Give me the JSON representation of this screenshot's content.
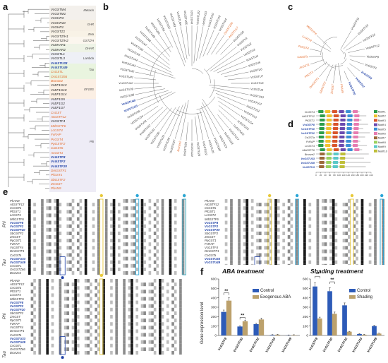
{
  "panel_labels": {
    "a": "a",
    "b": "b",
    "c": "c",
    "d": "d",
    "e": "e",
    "f": "f"
  },
  "colors": {
    "orange": "#e36a2a",
    "blue": "#1d3fa5",
    "control": "#2d5bb8",
    "treatment": "#bca16c",
    "conserved": "#1a1a1a",
    "semi": "#8a8a8a",
    "highlight_yellow": "#e8c93a",
    "highlight_blue": "#2aa6d8"
  },
  "panel_a": {
    "groups": [
      "Metaxin",
      "GHR",
      "Zeta",
      "GSTZ/H",
      "DHAR",
      "Lambda",
      "Tau",
      "EF1BG",
      "Phi"
    ],
    "leaves": [
      {
        "t": "VcGSTM4",
        "c": ""
      },
      {
        "t": "VcGSTM1",
        "c": ""
      },
      {
        "t": "VcGHR3",
        "c": ""
      },
      {
        "t": "VcGHR10",
        "c": ""
      },
      {
        "t": "VcGHR1",
        "c": ""
      },
      {
        "t": "VcGSTZ1",
        "c": ""
      },
      {
        "t": "VcGSTZ/H1",
        "c": ""
      },
      {
        "t": "VcGSTZ/H2",
        "c": ""
      },
      {
        "t": "VcDHAR1",
        "c": ""
      },
      {
        "t": "VcDHAR2",
        "c": ""
      },
      {
        "t": "VcGSTL1",
        "c": ""
      },
      {
        "t": "VcGSTL3",
        "c": ""
      },
      {
        "t": "VcGSTU33",
        "c": "blue"
      },
      {
        "t": "VcGSTU49",
        "c": "blue"
      },
      {
        "t": "CsGSTL",
        "c": "orange"
      },
      {
        "t": "OsGSTZ66",
        "c": "orange"
      },
      {
        "t": "Bronze2",
        "c": "orange"
      },
      {
        "t": "VcEF1G13",
        "c": ""
      },
      {
        "t": "VcEF1G10",
        "c": ""
      },
      {
        "t": "VcEF1G14",
        "c": ""
      },
      {
        "t": "VcEF1G5",
        "c": ""
      },
      {
        "t": "VcEF1G2",
        "c": ""
      },
      {
        "t": "VcEF1G7",
        "c": ""
      },
      {
        "t": "CsGST",
        "c": "orange"
      },
      {
        "t": "AtGSTF12",
        "c": "orange"
      },
      {
        "t": "VcGSTF4",
        "c": ""
      },
      {
        "t": "MdGSTF6",
        "c": "orange"
      },
      {
        "t": "LcGST4",
        "c": "orange"
      },
      {
        "t": "FvRAP",
        "c": "orange"
      },
      {
        "t": "PcGST4",
        "c": "orange"
      },
      {
        "t": "PpGSTF2",
        "c": "orange"
      },
      {
        "t": "CaGSTa",
        "c": "orange"
      },
      {
        "t": "AcGST1",
        "c": "orange"
      },
      {
        "t": "VcGSTF8",
        "c": "blue"
      },
      {
        "t": "VcGSTF2",
        "c": "blue"
      },
      {
        "t": "VcGSTF20",
        "c": "blue"
      },
      {
        "t": "DmGSTF1",
        "c": "orange"
      },
      {
        "t": "PfGST1",
        "c": "orange"
      },
      {
        "t": "SbGSTF2",
        "c": "orange"
      },
      {
        "t": "ZmGST",
        "c": "orange"
      },
      {
        "t": "PhAN9",
        "c": "orange"
      }
    ]
  },
  "panel_b": {
    "top_leaves": [
      "VcGSTU21",
      "VcGSTU22",
      "VcGSTU13",
      "VcGSTU10",
      "VcGSTU19",
      "VcGSTU24",
      "VcGSTU27",
      "VcGSTU26",
      "VcGSTU20"
    ],
    "orange_leaves": [
      "OsGSTZ66",
      "AtGSTU17",
      "Bronze2"
    ],
    "blue_leaves": [
      "VcGSTU33",
      "VcGSTU49"
    ]
  },
  "panel_c": {
    "black_leaves": [
      "VcGSTF11",
      "VcGSTF15",
      "VcGSTF16",
      "VcGSTF12",
      "VcGSTF9",
      "VcGSTF1"
    ],
    "orange_leaves": [
      "PhAN9",
      "ZmGST",
      "SbGSTF2",
      "DmGSTF1",
      "PfGST1",
      "AcGST1",
      "CaGSTa",
      "PcGST4",
      "LcGST4",
      "MdGSTF6"
    ],
    "blue_leaves": [
      "VcGSTF8",
      "VcGSTF2",
      "VcGSTF20"
    ]
  },
  "panel_d": {
    "rows": [
      "VcGST4",
      "AtGSTF12",
      "PfGST1",
      "VcGSTF8",
      "VcGSTF20",
      "VcGSTF22",
      "CsGSTa",
      "FvRAP",
      "LcGST4",
      "MdGSTF6",
      "Bronze2",
      "VcGSTU33",
      "VcGSTU49",
      "VcGSTU3"
    ],
    "motifs": [
      "Motif 1",
      "Motif 2",
      "Motif 3",
      "Motif 4",
      "Motif 5",
      "Motif 6",
      "Motif 7",
      "Motif 8",
      "Motif 9",
      "Motif 10"
    ],
    "motif_colors": [
      "#2e9e4a",
      "#f2c12e",
      "#d9542a",
      "#6a4ab0",
      "#3b8fd6",
      "#e77bb0",
      "#9c6a3a",
      "#9bd15e",
      "#5ac8c8",
      "#bfbf3a"
    ],
    "axis": [
      "0",
      "20",
      "40",
      "60",
      "80",
      "100",
      "120",
      "140",
      "160",
      "180",
      "200",
      "220",
      "240"
    ]
  },
  "panel_e": {
    "side_labels": {
      "phi": "Phi",
      "tau": "Tau"
    },
    "seqs": [
      {
        "t": "PhAN9",
        "c": ""
      },
      {
        "t": "AtGSTF12",
        "c": ""
      },
      {
        "t": "CsGSTa",
        "c": ""
      },
      {
        "t": "PfGST1",
        "c": ""
      },
      {
        "t": "LcGST4",
        "c": ""
      },
      {
        "t": "MdGSTF6",
        "c": ""
      },
      {
        "t": "VcGSTF8",
        "c": "blue"
      },
      {
        "t": "VcGSTF2",
        "c": "blue"
      },
      {
        "t": "VcGSTF20",
        "c": "blue"
      },
      {
        "t": "SbGSTF2",
        "c": ""
      },
      {
        "t": "ZmGST",
        "c": ""
      },
      {
        "t": "PpGST1",
        "c": ""
      },
      {
        "t": "FvRAP",
        "c": ""
      },
      {
        "t": "VcGSTF4",
        "c": ""
      },
      {
        "t": "DmGSTF1",
        "c": ""
      },
      {
        "t": "CaGSTa",
        "c": ""
      },
      {
        "t": "VcGSTU33",
        "c": "blue"
      },
      {
        "t": "VcGSTU49",
        "c": "blue"
      },
      {
        "t": "CsGSTL",
        "c": ""
      },
      {
        "t": "OsGSTZ66",
        "c": ""
      },
      {
        "t": "Bronze2",
        "c": ""
      }
    ]
  },
  "panel_f": {
    "title_aba": "ABA treatment",
    "title_shade": "Shading treatment",
    "ylabel": "Gene expression level",
    "legend_aba": [
      "Control",
      "Exogenous ABA"
    ],
    "legend_shade": [
      "Control",
      "Shading"
    ],
    "significance": "**",
    "yticks": [
      "0",
      "100",
      "200",
      "300",
      "400",
      "500",
      "600"
    ]
  },
  "chart_data": [
    {
      "type": "bar",
      "title": "ABA treatment",
      "ylabel": "Gene expression level",
      "categories": [
        "VcGSTF8",
        "VcGSTF20",
        "VcGSTF22",
        "VcGSTU33",
        "VcGSTU49"
      ],
      "ylim": [
        0,
        600
      ],
      "series": [
        {
          "name": "Control",
          "values": [
            250,
            95,
            120,
            5,
            2
          ]
        },
        {
          "name": "Exogenous ABA",
          "values": [
            370,
            150,
            170,
            8,
            4
          ]
        }
      ],
      "annotations": [
        "**",
        "**"
      ]
    },
    {
      "type": "bar",
      "title": "Shading treatment",
      "ylabel": "Gene expression level",
      "categories": [
        "VcGSTF8",
        "VcGSTF20",
        "VcGSTF22",
        "VcGSTU33",
        "VcGSTU49"
      ],
      "ylim": [
        0,
        600
      ],
      "series": [
        {
          "name": "Control",
          "values": [
            520,
            470,
            320,
            15,
            100
          ]
        },
        {
          "name": "Shading",
          "values": [
            180,
            230,
            40,
            8,
            20
          ]
        }
      ],
      "annotations": [
        "**",
        "**"
      ]
    }
  ]
}
